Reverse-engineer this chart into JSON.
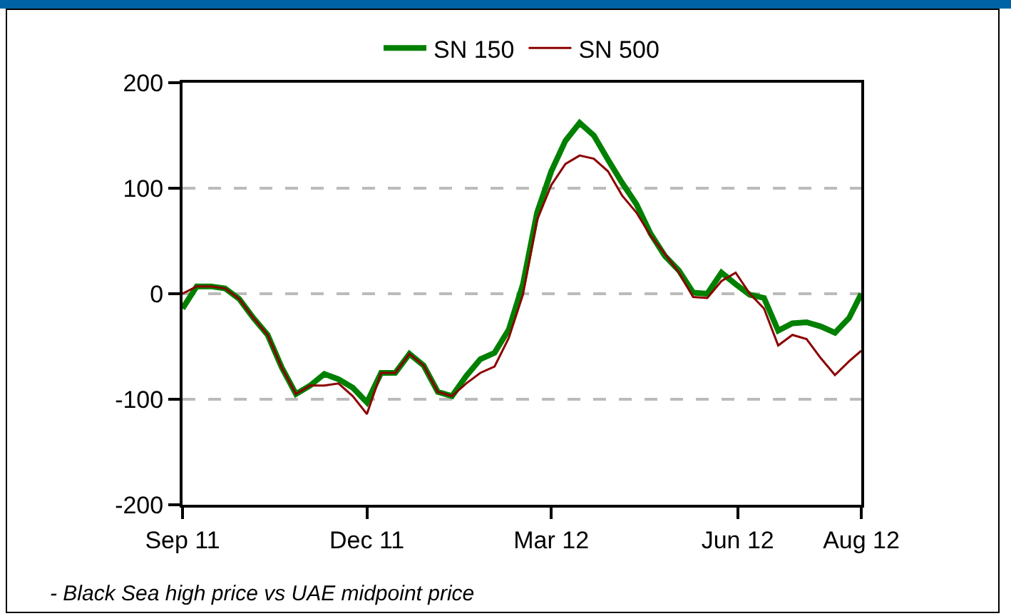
{
  "chart_data": {
    "type": "line",
    "x": [
      "2011-09-01",
      "2011-09-08",
      "2011-09-15",
      "2011-09-22",
      "2011-09-29",
      "2011-10-06",
      "2011-10-13",
      "2011-10-20",
      "2011-10-27",
      "2011-11-03",
      "2011-11-10",
      "2011-11-17",
      "2011-11-24",
      "2011-12-01",
      "2011-12-08",
      "2011-12-15",
      "2011-12-22",
      "2011-12-29",
      "2012-01-05",
      "2012-01-12",
      "2012-01-19",
      "2012-01-26",
      "2012-02-02",
      "2012-02-09",
      "2012-02-16",
      "2012-02-23",
      "2012-03-01",
      "2012-03-08",
      "2012-03-15",
      "2012-03-22",
      "2012-03-29",
      "2012-04-05",
      "2012-04-12",
      "2012-04-19",
      "2012-04-26",
      "2012-05-03",
      "2012-05-10",
      "2012-05-17",
      "2012-05-24",
      "2012-05-31",
      "2012-06-07",
      "2012-06-14",
      "2012-06-21",
      "2012-06-28",
      "2012-07-05",
      "2012-07-12",
      "2012-07-19",
      "2012-07-26",
      "2012-08-01"
    ],
    "series": [
      {
        "name": "SN 150",
        "color": "#008000",
        "values": [
          -14,
          7,
          7,
          5,
          -5,
          -23,
          -39,
          -70,
          -95,
          -87,
          -76,
          -81,
          -89,
          -103,
          -75,
          -75,
          -57,
          -68,
          -93,
          -97,
          -78,
          -62,
          -56,
          -34,
          9,
          77,
          116,
          145,
          162,
          150,
          127,
          105,
          85,
          57,
          36,
          22,
          1,
          0,
          20,
          9,
          -1,
          -4,
          -35,
          -28,
          -27,
          -31,
          -37,
          -23,
          0
        ]
      },
      {
        "name": "SN 500",
        "color": "#8b0000",
        "values": [
          0,
          7,
          7,
          5,
          -5,
          -23,
          -39,
          -70,
          -95,
          -87,
          -87,
          -85,
          -97,
          -114,
          -75,
          -75,
          -57,
          -68,
          -93,
          -97,
          -85,
          -75,
          -69,
          -42,
          -1,
          70,
          103,
          123,
          131,
          128,
          116,
          93,
          77,
          55,
          38,
          20,
          -3,
          -4,
          12,
          20,
          0,
          -14,
          -49,
          -39,
          -43,
          -61,
          -77,
          -64,
          -54
        ]
      }
    ],
    "xlim": [
      "2011-09-01",
      "2012-08-01"
    ],
    "xticks": [
      {
        "value": "2011-09-01",
        "label": "Sep 11"
      },
      {
        "value": "2011-12-01",
        "label": "Dec 11"
      },
      {
        "value": "2012-03-01",
        "label": "Mar 12"
      },
      {
        "value": "2012-06-01",
        "label": "Jun 12"
      },
      {
        "value": "2012-08-01",
        "label": "Aug 12"
      }
    ],
    "ylim": [
      -200,
      200
    ],
    "yticks": [
      -200,
      -100,
      0,
      100,
      200
    ],
    "grid": "y",
    "legend": "top",
    "marker": "none",
    "line_style": "solid",
    "annotations": [
      "- Black Sea high price vs UAE midpoint price"
    ]
  }
}
